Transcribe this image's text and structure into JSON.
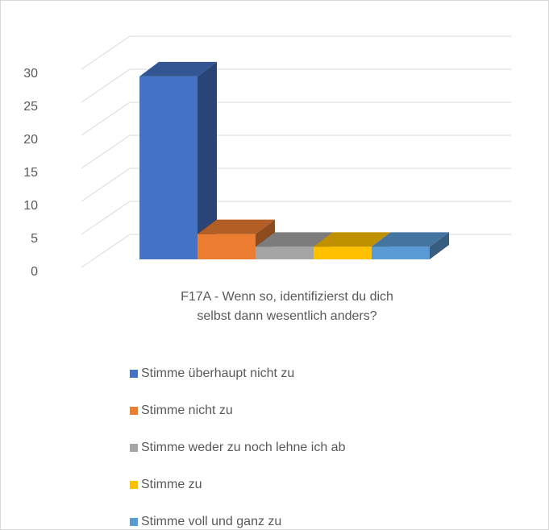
{
  "chart_data": {
    "type": "bar3d",
    "categories": [
      "F17A - Wenn so, identifizierst du dich selbst dann wesentlich anders?"
    ],
    "series": [
      {
        "name": "Stimme überhaupt nicht zu",
        "color": "#4472c4",
        "values": [
          29
        ]
      },
      {
        "name": "Stimme nicht zu",
        "color": "#ed7d31",
        "values": [
          4
        ]
      },
      {
        "name": "Stimme weder zu noch lehne ich ab",
        "color": "#a5a5a5",
        "values": [
          2
        ]
      },
      {
        "name": "Stimme zu",
        "color": "#ffc000",
        "values": [
          2
        ]
      },
      {
        "name": "Stimme voll und ganz zu",
        "color": "#5b9bd5",
        "values": [
          2
        ]
      }
    ],
    "ylim": [
      0,
      30
    ],
    "yticks": [
      0,
      5,
      10,
      15,
      20,
      25,
      30
    ],
    "grid": true,
    "legend": "bottom"
  }
}
